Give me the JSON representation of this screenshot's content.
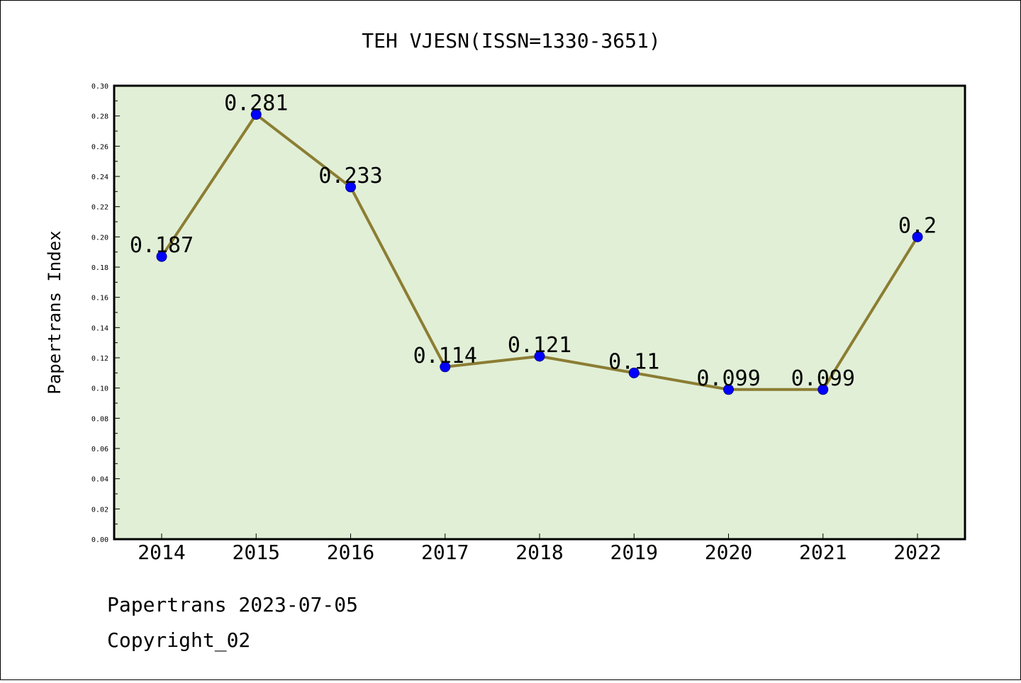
{
  "chart_data": {
    "type": "line",
    "title": "TEH VJESN(ISSN=1330-3651)",
    "ylabel": "Papertrans Index",
    "xlabel": "",
    "x": [
      "2014",
      "2015",
      "2016",
      "2017",
      "2018",
      "2019",
      "2020",
      "2021",
      "2022"
    ],
    "series": [
      {
        "values": [
          0.187,
          0.281,
          0.233,
          0.114,
          0.121,
          0.11,
          0.099,
          0.099,
          0.2
        ],
        "data_labels": [
          "0.187",
          "0.281",
          "0.233",
          "0.114",
          "0.121",
          "0.11",
          "0.099",
          "0.099",
          "0.2"
        ]
      }
    ],
    "ylim": [
      0.0,
      0.3
    ],
    "yticks": [
      "0.00",
      "0.02",
      "0.04",
      "0.06",
      "0.08",
      "0.10",
      "0.12",
      "0.14",
      "0.16",
      "0.18",
      "0.20",
      "0.22",
      "0.24",
      "0.26",
      "0.28",
      "0.30"
    ],
    "grid": false,
    "colors": {
      "plot_background": "#e1efd6",
      "line": "#8b7d33",
      "marker": "#0000ff"
    }
  },
  "footer": {
    "line1": "Papertrans 2023-07-05",
    "line2": "Copyright_02"
  }
}
